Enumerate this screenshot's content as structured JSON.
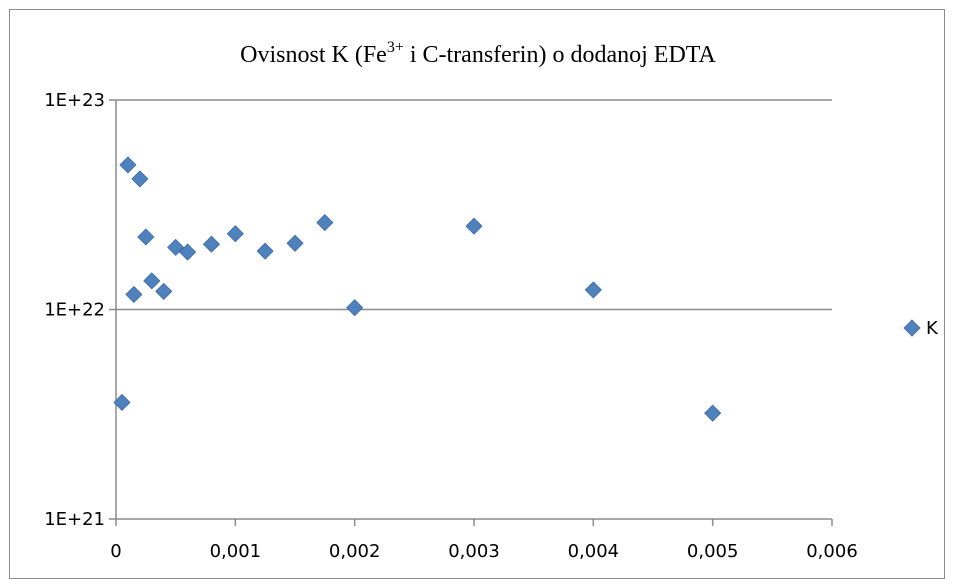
{
  "chart_data": {
    "type": "scatter",
    "title_parts": {
      "before": "Ovisnost K (Fe",
      "sup": "3+",
      "after": " i C-transferin) o dodanoj EDTA"
    },
    "title": "Ovisnost K (Fe3+ i C-transferin) o dodanoj EDTA",
    "xlabel": "",
    "ylabel": "",
    "xlim": [
      0,
      0.006
    ],
    "ylim": [
      1e+21,
      1e+23
    ],
    "y_scale": "log",
    "x_ticks": [
      0,
      0.001,
      0.002,
      0.003,
      0.004,
      0.005,
      0.006
    ],
    "x_tick_labels": [
      "0",
      "0,001",
      "0,002",
      "0,003",
      "0,004",
      "0,005",
      "0,006"
    ],
    "y_ticks": [
      1e+21,
      1e+22,
      1e+23
    ],
    "y_tick_labels": [
      "1E+21",
      "1E+22",
      "1E+23"
    ],
    "grid": "horizontal major gridlines",
    "legend_position": "right",
    "marker": "diamond",
    "series": [
      {
        "name": "K",
        "color": "#4F81BD",
        "x": [
          5e-05,
          0.0001,
          0.00015,
          0.0002,
          0.00025,
          0.0003,
          0.0004,
          0.0005,
          0.0006,
          0.0008,
          0.001,
          0.00125,
          0.0015,
          0.00175,
          0.002,
          0.003,
          0.004,
          0.005
        ],
        "y": [
          3.6e+21,
          4.9e+22,
          1.18e+22,
          4.2e+22,
          2.22e+22,
          1.37e+22,
          1.22e+22,
          1.98e+22,
          1.88e+22,
          2.05e+22,
          2.3e+22,
          1.9e+22,
          2.07e+22,
          2.6e+22,
          1.02e+22,
          2.5e+22,
          1.24e+22,
          3.2e+21
        ]
      }
    ]
  }
}
